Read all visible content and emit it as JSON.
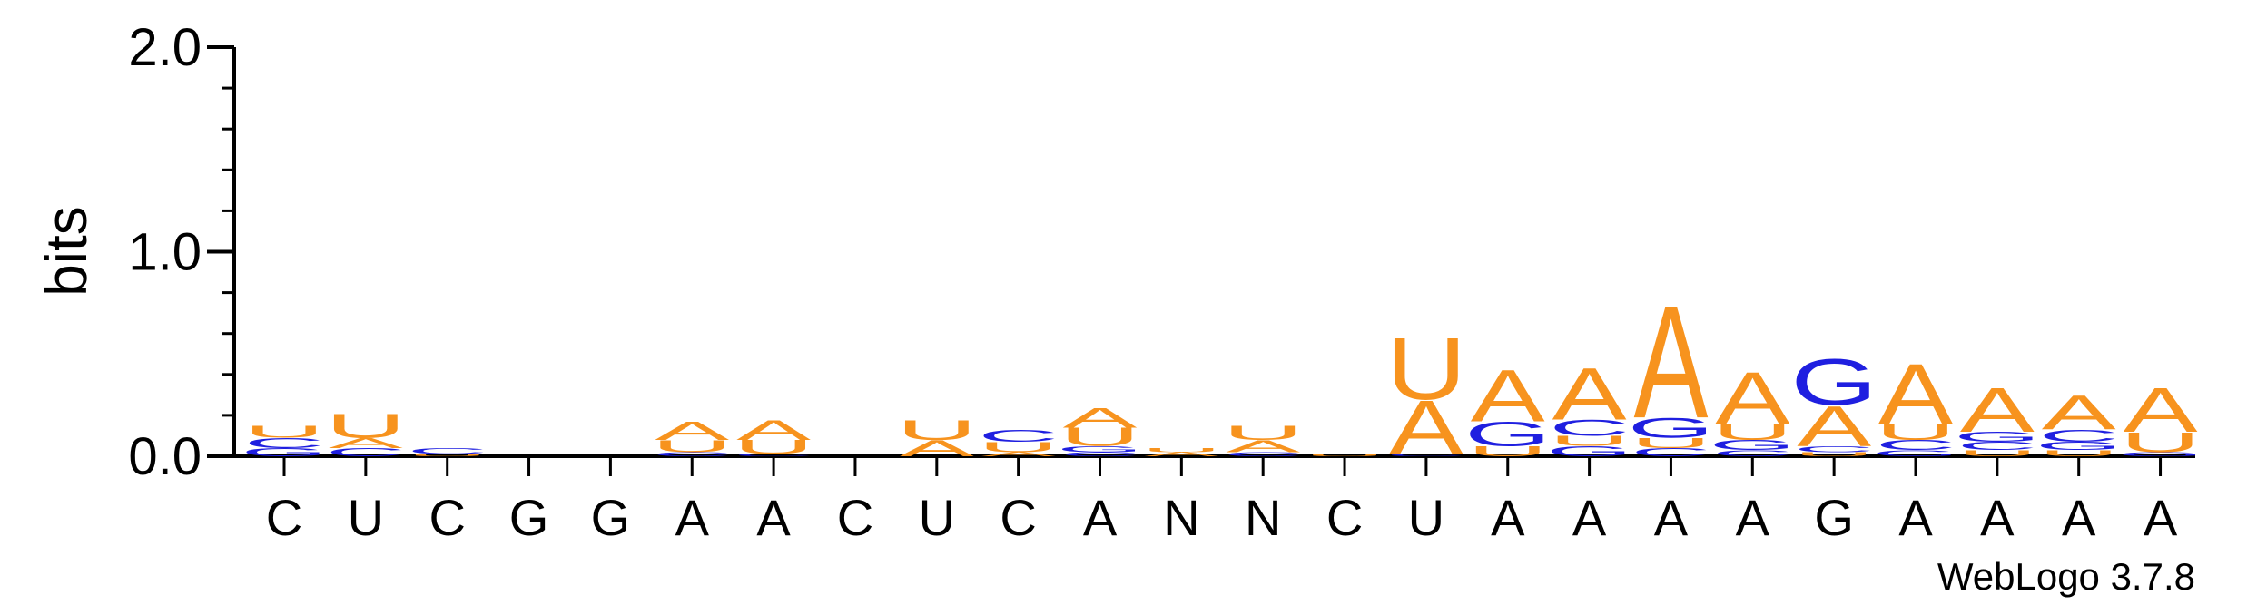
{
  "chart_data": {
    "type": "sequence-logo",
    "ylabel": "bits",
    "ylim": [
      0,
      2.0
    ],
    "yticks": [
      "0.0",
      "1.0",
      "2.0"
    ],
    "positions": [
      "C",
      "U",
      "C",
      "G",
      "G",
      "A",
      "A",
      "C",
      "U",
      "C",
      "A",
      "N",
      "N",
      "C",
      "U",
      "A",
      "A",
      "A",
      "A",
      "G",
      "A",
      "A",
      "A",
      "A"
    ],
    "colors": {
      "A": "#f7931e",
      "U": "#f7931e",
      "C": "#1f1fe0",
      "G": "#1f1fe0"
    },
    "stacks": [
      [
        [
          "U",
          0.06
        ],
        [
          "C",
          0.05
        ],
        [
          "G",
          0.04
        ]
      ],
      [
        [
          "U",
          0.12
        ],
        [
          "A",
          0.05
        ],
        [
          "C",
          0.04
        ]
      ],
      [
        [
          "C",
          0.03
        ],
        [
          "U",
          0.01
        ]
      ],
      [],
      [],
      [
        [
          "A",
          0.09
        ],
        [
          "U",
          0.06
        ],
        [
          "C",
          0.02
        ]
      ],
      [
        [
          "A",
          0.1
        ],
        [
          "U",
          0.07
        ],
        [
          "C",
          0.01
        ]
      ],
      [],
      [
        [
          "U",
          0.1
        ],
        [
          "A",
          0.08
        ]
      ],
      [
        [
          "C",
          0.06
        ],
        [
          "U",
          0.05
        ],
        [
          "A",
          0.02
        ]
      ],
      [
        [
          "A",
          0.1
        ],
        [
          "U",
          0.09
        ],
        [
          "G",
          0.03
        ],
        [
          "C",
          0.02
        ]
      ],
      [
        [
          "A",
          0.02
        ],
        [
          "U",
          0.02
        ]
      ],
      [
        [
          "U",
          0.07
        ],
        [
          "A",
          0.06
        ],
        [
          "C",
          0.02
        ]
      ],
      [
        [
          "U",
          0.01
        ]
      ],
      [
        [
          "U",
          0.31
        ],
        [
          "A",
          0.27
        ],
        [
          "C",
          0.01
        ]
      ],
      [
        [
          "A",
          0.26
        ],
        [
          "G",
          0.12
        ],
        [
          "U",
          0.05
        ]
      ],
      [
        [
          "A",
          0.26
        ],
        [
          "C",
          0.08
        ],
        [
          "G",
          0.05
        ],
        [
          "U",
          0.05
        ]
      ],
      [
        [
          "A",
          0.56
        ],
        [
          "G",
          0.1
        ],
        [
          "U",
          0.05
        ],
        [
          "C",
          0.04
        ]
      ],
      [
        [
          "A",
          0.26
        ],
        [
          "U",
          0.08
        ],
        [
          "G",
          0.05
        ],
        [
          "C",
          0.03
        ]
      ],
      [
        [
          "G",
          0.23
        ],
        [
          "A",
          0.2
        ],
        [
          "C",
          0.03
        ],
        [
          "U",
          0.02
        ]
      ],
      [
        [
          "A",
          0.3
        ],
        [
          "U",
          0.08
        ],
        [
          "C",
          0.05
        ],
        [
          "G",
          0.03
        ]
      ],
      [
        [
          "A",
          0.22
        ],
        [
          "G",
          0.05
        ],
        [
          "C",
          0.04
        ],
        [
          "U",
          0.03
        ]
      ],
      [
        [
          "A",
          0.17
        ],
        [
          "C",
          0.06
        ],
        [
          "G",
          0.04
        ],
        [
          "U",
          0.03
        ]
      ],
      [
        [
          "A",
          0.22
        ],
        [
          "U",
          0.1
        ],
        [
          "G",
          0.02
        ]
      ]
    ]
  },
  "credit": "WebLogo 3.7.8"
}
